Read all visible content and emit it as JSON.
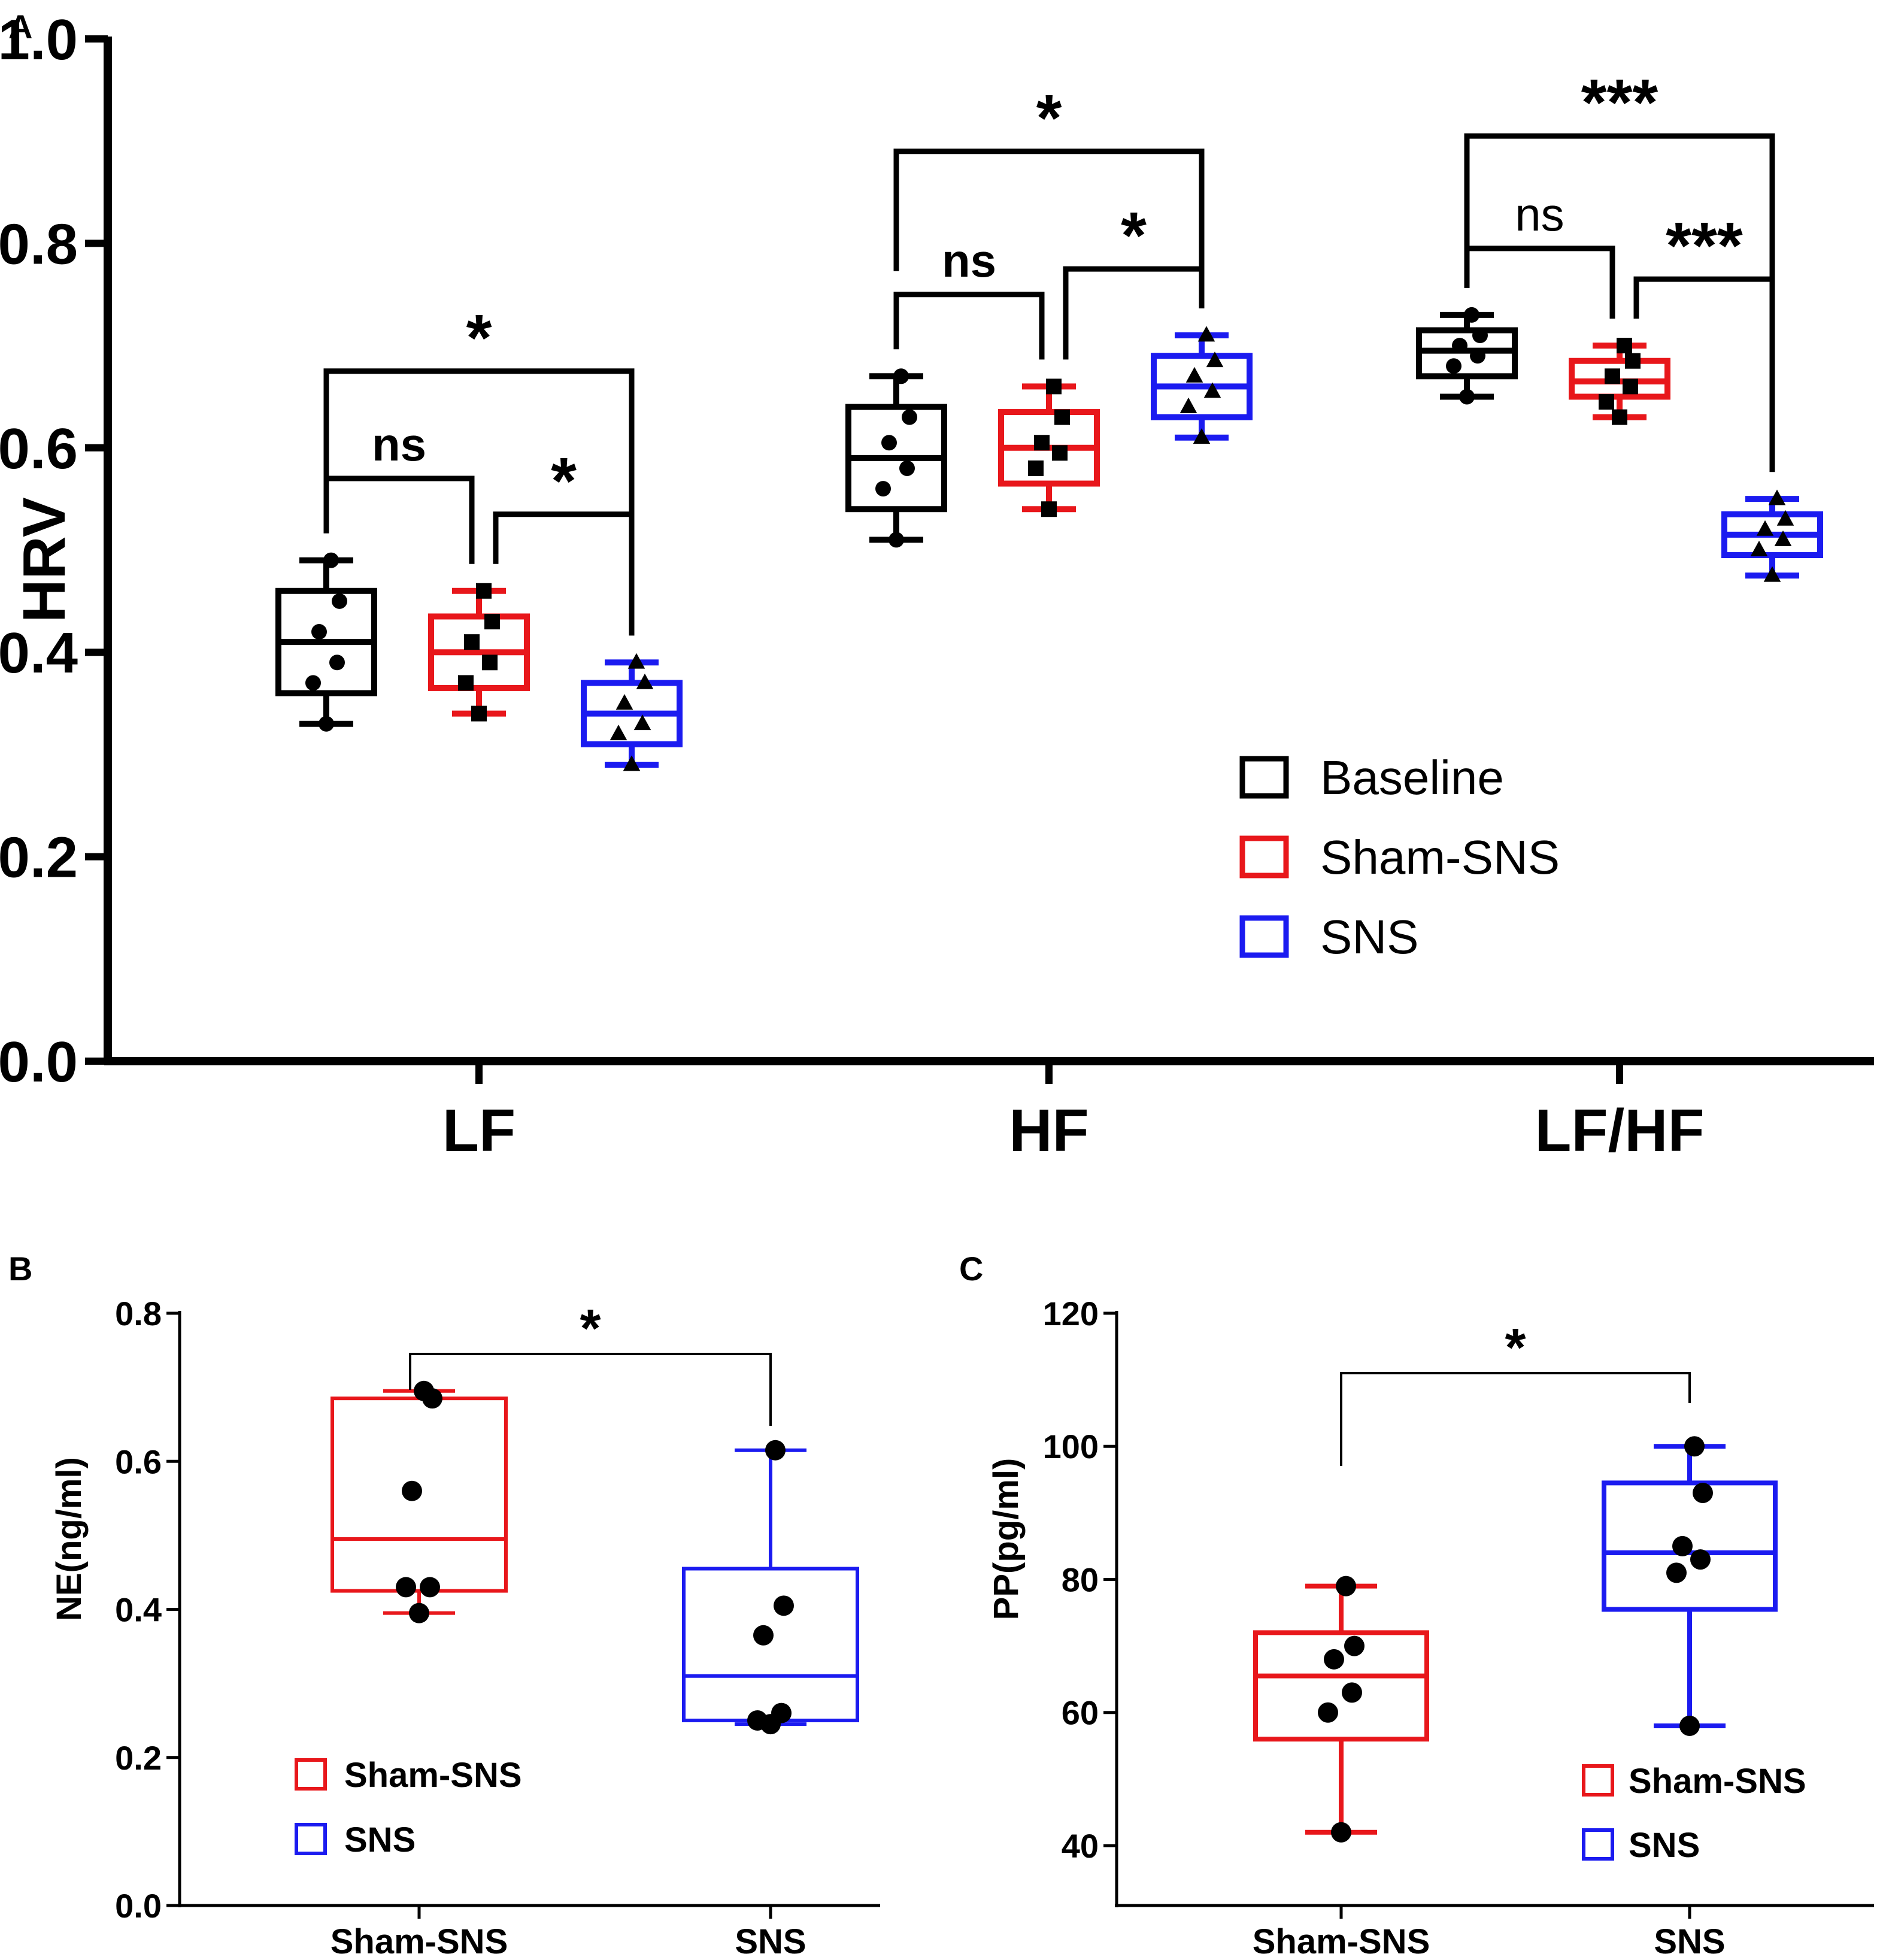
{
  "colors": {
    "Baseline": "#000000",
    "Sham-SNS": "#e8171b",
    "SNS": "#1b1bf0",
    "axis": "#000000"
  },
  "chart_data": [
    {
      "panel": "A",
      "type": "box",
      "ylabel": "HRV",
      "ylim": [
        0,
        1.0
      ],
      "yticks": [
        0.0,
        0.2,
        0.4,
        0.6,
        0.8,
        1.0
      ],
      "ytick_labels": [
        "0.0",
        "0.2",
        "0.4",
        "0.6",
        "0.8",
        "1.0"
      ],
      "categories": [
        "LF",
        "HF",
        "LF/HF"
      ],
      "series_names": [
        "Baseline",
        "Sham-SNS",
        "SNS"
      ],
      "groups": [
        {
          "category": "LF",
          "boxes": [
            {
              "series": "Baseline",
              "min": 0.33,
              "q1": 0.36,
              "median": 0.41,
              "q3": 0.46,
              "max": 0.49,
              "marker": "circle",
              "points": [
                0.33,
                0.37,
                0.39,
                0.42,
                0.45,
                0.49
              ]
            },
            {
              "series": "Sham-SNS",
              "min": 0.34,
              "q1": 0.365,
              "median": 0.4,
              "q3": 0.435,
              "max": 0.46,
              "marker": "square",
              "points": [
                0.34,
                0.37,
                0.39,
                0.41,
                0.43,
                0.46
              ]
            },
            {
              "series": "SNS",
              "min": 0.29,
              "q1": 0.31,
              "median": 0.34,
              "q3": 0.37,
              "max": 0.39,
              "marker": "triangle",
              "points": [
                0.29,
                0.32,
                0.33,
                0.35,
                0.37,
                0.39
              ]
            }
          ]
        },
        {
          "category": "HF",
          "boxes": [
            {
              "series": "Baseline",
              "min": 0.51,
              "q1": 0.54,
              "median": 0.59,
              "q3": 0.64,
              "max": 0.67,
              "marker": "circle",
              "points": [
                0.51,
                0.56,
                0.58,
                0.605,
                0.63,
                0.67
              ]
            },
            {
              "series": "Sham-SNS",
              "min": 0.54,
              "q1": 0.565,
              "median": 0.6,
              "q3": 0.635,
              "max": 0.66,
              "marker": "square",
              "points": [
                0.54,
                0.58,
                0.595,
                0.605,
                0.63,
                0.66
              ]
            },
            {
              "series": "SNS",
              "min": 0.61,
              "q1": 0.63,
              "median": 0.66,
              "q3": 0.69,
              "max": 0.71,
              "marker": "triangle",
              "points": [
                0.61,
                0.64,
                0.655,
                0.67,
                0.685,
                0.71
              ]
            }
          ]
        },
        {
          "category": "LF/HF",
          "boxes": [
            {
              "series": "Baseline",
              "min": 0.65,
              "q1": 0.67,
              "median": 0.695,
              "q3": 0.715,
              "max": 0.73,
              "marker": "circle",
              "points": [
                0.65,
                0.68,
                0.69,
                0.7,
                0.71,
                0.73
              ]
            },
            {
              "series": "Sham-SNS",
              "min": 0.63,
              "q1": 0.65,
              "median": 0.665,
              "q3": 0.685,
              "max": 0.7,
              "marker": "square",
              "points": [
                0.63,
                0.645,
                0.66,
                0.67,
                0.685,
                0.7
              ]
            },
            {
              "series": "SNS",
              "min": 0.475,
              "q1": 0.495,
              "median": 0.515,
              "q3": 0.535,
              "max": 0.55,
              "marker": "triangle",
              "points": [
                0.475,
                0.5,
                0.51,
                0.52,
                0.53,
                0.55
              ]
            }
          ]
        }
      ],
      "significance": [
        {
          "category": "LF",
          "from": "Baseline",
          "to": "Sham-SNS",
          "label": "ns",
          "y": 0.57
        },
        {
          "category": "LF",
          "from": "Sham-SNS",
          "to": "SNS",
          "label": "*",
          "y": 0.535
        },
        {
          "category": "LF",
          "from": "Baseline",
          "to": "SNS",
          "label": "*",
          "y": 0.675
        },
        {
          "category": "HF",
          "from": "Baseline",
          "to": "Sham-SNS",
          "label": "ns",
          "y": 0.75
        },
        {
          "category": "HF",
          "from": "Sham-SNS",
          "to": "SNS",
          "label": "*",
          "y": 0.775
        },
        {
          "category": "HF",
          "from": "Baseline",
          "to": "SNS",
          "label": "*",
          "y": 0.89
        },
        {
          "category": "LF/HF",
          "from": "Baseline",
          "to": "Sham-SNS",
          "label": "ns",
          "y": 0.795
        },
        {
          "category": "LF/HF",
          "from": "Sham-SNS",
          "to": "SNS",
          "label": "***",
          "y": 0.765
        },
        {
          "category": "LF/HF",
          "from": "Baseline",
          "to": "SNS",
          "label": "***",
          "y": 0.905
        }
      ],
      "legend": {
        "position": "lower-right",
        "items": [
          "Baseline",
          "Sham-SNS",
          "SNS"
        ]
      }
    },
    {
      "panel": "B",
      "type": "box",
      "ylabel": "NE(ng/ml)",
      "ylim": [
        0,
        0.8
      ],
      "yticks": [
        0.0,
        0.2,
        0.4,
        0.6,
        0.8
      ],
      "ytick_labels": [
        "0.0",
        "0.2",
        "0.4",
        "0.6",
        "0.8"
      ],
      "categories": [
        "Sham-SNS",
        "SNS"
      ],
      "boxes": [
        {
          "series": "Sham-SNS",
          "min": 0.395,
          "q1": 0.425,
          "median": 0.495,
          "q3": 0.685,
          "max": 0.695,
          "points": [
            0.395,
            0.43,
            0.43,
            0.56,
            0.685,
            0.695
          ]
        },
        {
          "series": "SNS",
          "min": 0.245,
          "q1": 0.25,
          "median": 0.31,
          "q3": 0.455,
          "max": 0.615,
          "points": [
            0.245,
            0.25,
            0.26,
            0.365,
            0.405,
            0.615
          ]
        }
      ],
      "significance": [
        {
          "from": "Sham-SNS",
          "to": "SNS",
          "label": "*",
          "y": 0.745
        }
      ],
      "legend": {
        "position": "lower-left",
        "items": [
          "Sham-SNS",
          "SNS"
        ]
      }
    },
    {
      "panel": "C",
      "type": "box",
      "ylabel": "PP(pg/ml)",
      "ylim": [
        31,
        120
      ],
      "yticks": [
        40,
        60,
        80,
        100,
        120
      ],
      "ytick_labels": [
        "40",
        "60",
        "80",
        "100",
        "120"
      ],
      "categories": [
        "Sham-SNS",
        "SNS"
      ],
      "boxes": [
        {
          "series": "Sham-SNS",
          "min": 42,
          "q1": 56,
          "median": 65.5,
          "q3": 72,
          "max": 79,
          "points": [
            42,
            60,
            63,
            68,
            70,
            79
          ]
        },
        {
          "series": "SNS",
          "min": 58,
          "q1": 75.5,
          "median": 84,
          "q3": 94.5,
          "max": 100,
          "points": [
            58,
            81,
            83,
            85,
            93,
            100
          ]
        }
      ],
      "significance": [
        {
          "from": "Sham-SNS",
          "to": "SNS",
          "label": "*",
          "y": 111
        }
      ],
      "legend": {
        "position": "lower-right",
        "items": [
          "Sham-SNS",
          "SNS"
        ]
      }
    }
  ]
}
